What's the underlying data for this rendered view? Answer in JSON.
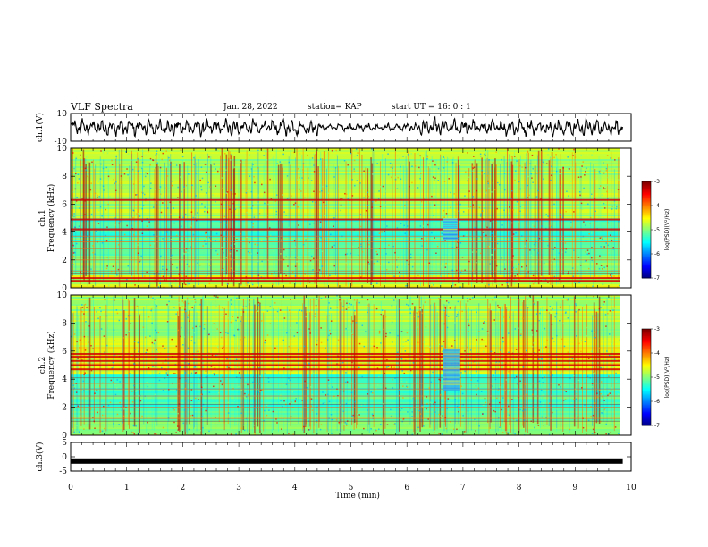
{
  "header": {
    "title": "VLF Spectra",
    "date": "Jan. 28, 2022",
    "station": "station= KAP",
    "start_ut": "start  UT =   16: 0  : 1"
  },
  "chart_data": [
    {
      "type": "line",
      "panel": "ch1-waveform",
      "ylabel": "ch.1(V)",
      "ylim": [
        -10,
        10
      ],
      "y_ticks": [
        "10",
        "-10"
      ],
      "xlim": [
        0,
        10
      ],
      "series": [
        {
          "values_note_count": 0
        }
      ]
    },
    {
      "type": "heatmap",
      "panel": "ch1-spectrogram",
      "ylabel_line1": "ch.1",
      "ylabel_line2": "Frequency (kHz)",
      "ylim": [
        0,
        10
      ],
      "y_ticks": [
        "0",
        "2",
        "4",
        "6",
        "8",
        "10"
      ],
      "xlim": [
        0,
        9.85
      ],
      "colorbar": {
        "label": "log(PSD)(V²/Hz)",
        "range": [
          -7,
          -3
        ],
        "ticks": [
          "-3",
          "-4",
          "-5",
          "-6",
          "-7"
        ]
      },
      "strong_bands_khz": [
        0.5,
        0.7,
        4.2,
        4.9,
        6.3
      ],
      "feature": {
        "x_min": [
          6.65,
          6.9
        ],
        "freq_khz": [
          3.4,
          5.0
        ]
      }
    },
    {
      "type": "heatmap",
      "panel": "ch2-spectrogram",
      "ylabel_line1": "ch.2",
      "ylabel_line2": "Frequency (kHz)",
      "ylim": [
        0,
        10
      ],
      "y_ticks": [
        "0",
        "2",
        "4",
        "6",
        "8",
        "10"
      ],
      "xlim": [
        0,
        9.85
      ],
      "colorbar": {
        "label": "log(PSD)(V²/Hz)",
        "range": [
          -7,
          -3
        ],
        "ticks": [
          "-3",
          "-4",
          "-5",
          "-6",
          "-7"
        ]
      },
      "strong_bands_khz": [
        5.0,
        5.3,
        5.6,
        5.8,
        4.7
      ],
      "feature": {
        "x_min": [
          6.65,
          6.95
        ],
        "freq_khz": [
          3.2,
          6.2
        ]
      }
    },
    {
      "type": "line",
      "panel": "ch3-waveform",
      "ylabel": "ch.3(V)",
      "ylim": [
        -5,
        5
      ],
      "y_ticks": [
        "5",
        "0",
        "-5"
      ],
      "xlim": [
        0,
        10
      ],
      "series": [
        {
          "x": [
            0,
            9.85
          ],
          "y": [
            -1.5,
            -1.5
          ]
        }
      ]
    }
  ],
  "x_axis": {
    "label": "Time (min)",
    "ticks": [
      "0",
      "1",
      "2",
      "3",
      "4",
      "5",
      "6",
      "7",
      "8",
      "9",
      "10"
    ],
    "range": [
      0,
      10
    ]
  }
}
